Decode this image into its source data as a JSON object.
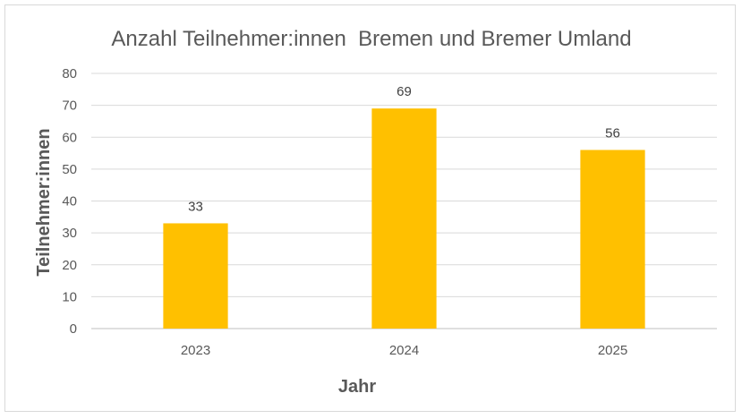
{
  "chart_data": {
    "type": "bar",
    "title": "Anzahl Teilnehmer:innen  Bremen und Bremer Umland",
    "xlabel": "Jahr",
    "ylabel": "Teilnehmer:innen",
    "categories": [
      "2023",
      "2024",
      "2025"
    ],
    "values": [
      33,
      69,
      56
    ],
    "data_labels": [
      "33",
      "69",
      "56"
    ],
    "ylim": [
      0,
      80
    ],
    "yticks": [
      0,
      10,
      20,
      30,
      40,
      50,
      60,
      70,
      80
    ],
    "ytick_labels": [
      "0",
      "10",
      "20",
      "30",
      "40",
      "50",
      "60",
      "70",
      "80"
    ],
    "grid": true,
    "legend": "none",
    "bar_color": "#ffc000"
  }
}
